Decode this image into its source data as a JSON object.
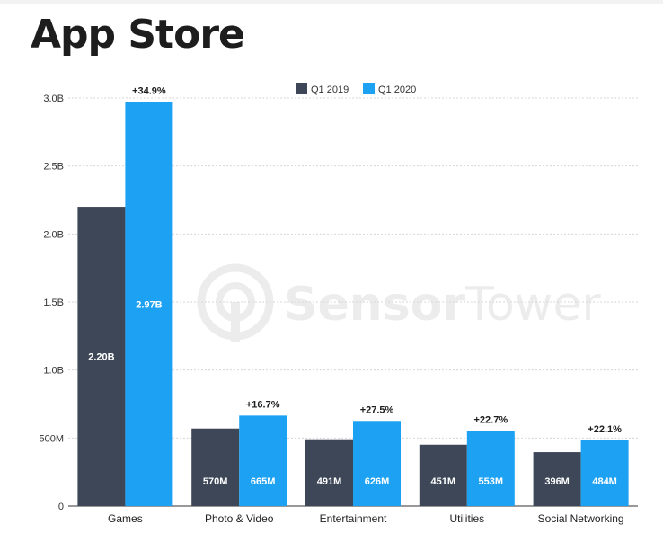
{
  "page": {
    "title": "App Store"
  },
  "watermark": {
    "text_a": "Sensor",
    "text_b": "Tower"
  },
  "colors": {
    "q1_2019": "#3d4757",
    "q1_2020": "#1da1f2",
    "grid": "#d7d7d7",
    "axis": "#333333"
  },
  "chart_data": {
    "type": "bar",
    "title": "App Store",
    "xlabel": "",
    "ylabel": "",
    "ylim": [
      0,
      3.0
    ],
    "unit": "billions",
    "grid": true,
    "legend": {
      "position": "top-center"
    },
    "yticks": [
      {
        "value": 0,
        "label": "0"
      },
      {
        "value": 0.5,
        "label": "500M"
      },
      {
        "value": 1.0,
        "label": "1.0B"
      },
      {
        "value": 1.5,
        "label": "1.5B"
      },
      {
        "value": 2.0,
        "label": "2.0B"
      },
      {
        "value": 2.5,
        "label": "2.5B"
      },
      {
        "value": 3.0,
        "label": "3.0B"
      }
    ],
    "categories": [
      "Games",
      "Photo & Video",
      "Entertainment",
      "Utilities",
      "Social Networking"
    ],
    "series": [
      {
        "name": "Q1 2019",
        "values": [
          2.2,
          0.57,
          0.491,
          0.451,
          0.396
        ],
        "labels": [
          "2.20B",
          "570M",
          "491M",
          "451M",
          "396M"
        ]
      },
      {
        "name": "Q1 2020",
        "values": [
          2.97,
          0.665,
          0.626,
          0.553,
          0.484
        ],
        "labels": [
          "2.97B",
          "665M",
          "626M",
          "553M",
          "484M"
        ]
      }
    ],
    "growth_labels": [
      "+34.9%",
      "+16.7%",
      "+27.5%",
      "+22.7%",
      "+22.1%"
    ]
  }
}
